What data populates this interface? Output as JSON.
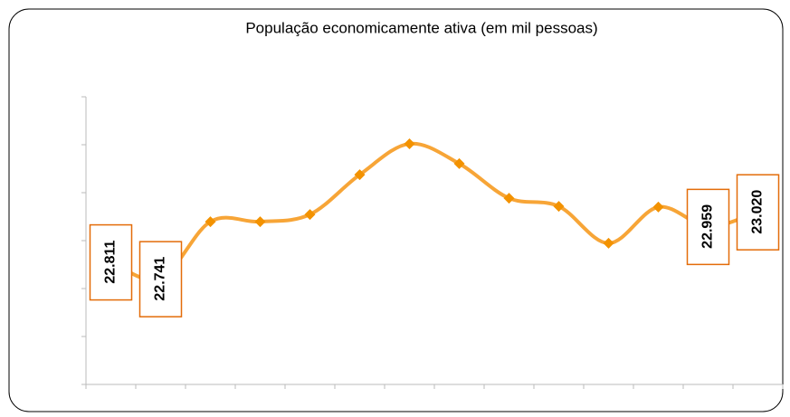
{
  "chart_data": {
    "type": "line",
    "title": "População economicamente ativa (em mil pessoas)",
    "categories": [
      null,
      null,
      null,
      null,
      null,
      null,
      null,
      null,
      null,
      null,
      null,
      null,
      null,
      null
    ],
    "series": [
      {
        "name": null,
        "color": "#f7a537",
        "marker_color": "#f39200",
        "values": [
          22.811,
          22.741,
          22.979,
          22.979,
          23.009,
          23.175,
          23.304,
          23.221,
          23.077,
          23.043,
          22.889,
          23.04,
          22.959,
          23.02
        ],
        "value_labels": [
          "22.811",
          "22.741",
          null,
          null,
          null,
          null,
          null,
          null,
          null,
          null,
          null,
          null,
          "22.959",
          "23.020"
        ]
      }
    ],
    "ylim": [
      22.3,
      23.5
    ],
    "yticks": [
      22.3,
      22.5,
      22.7,
      22.9,
      23.1,
      23.3,
      23.5
    ],
    "grid": false
  }
}
